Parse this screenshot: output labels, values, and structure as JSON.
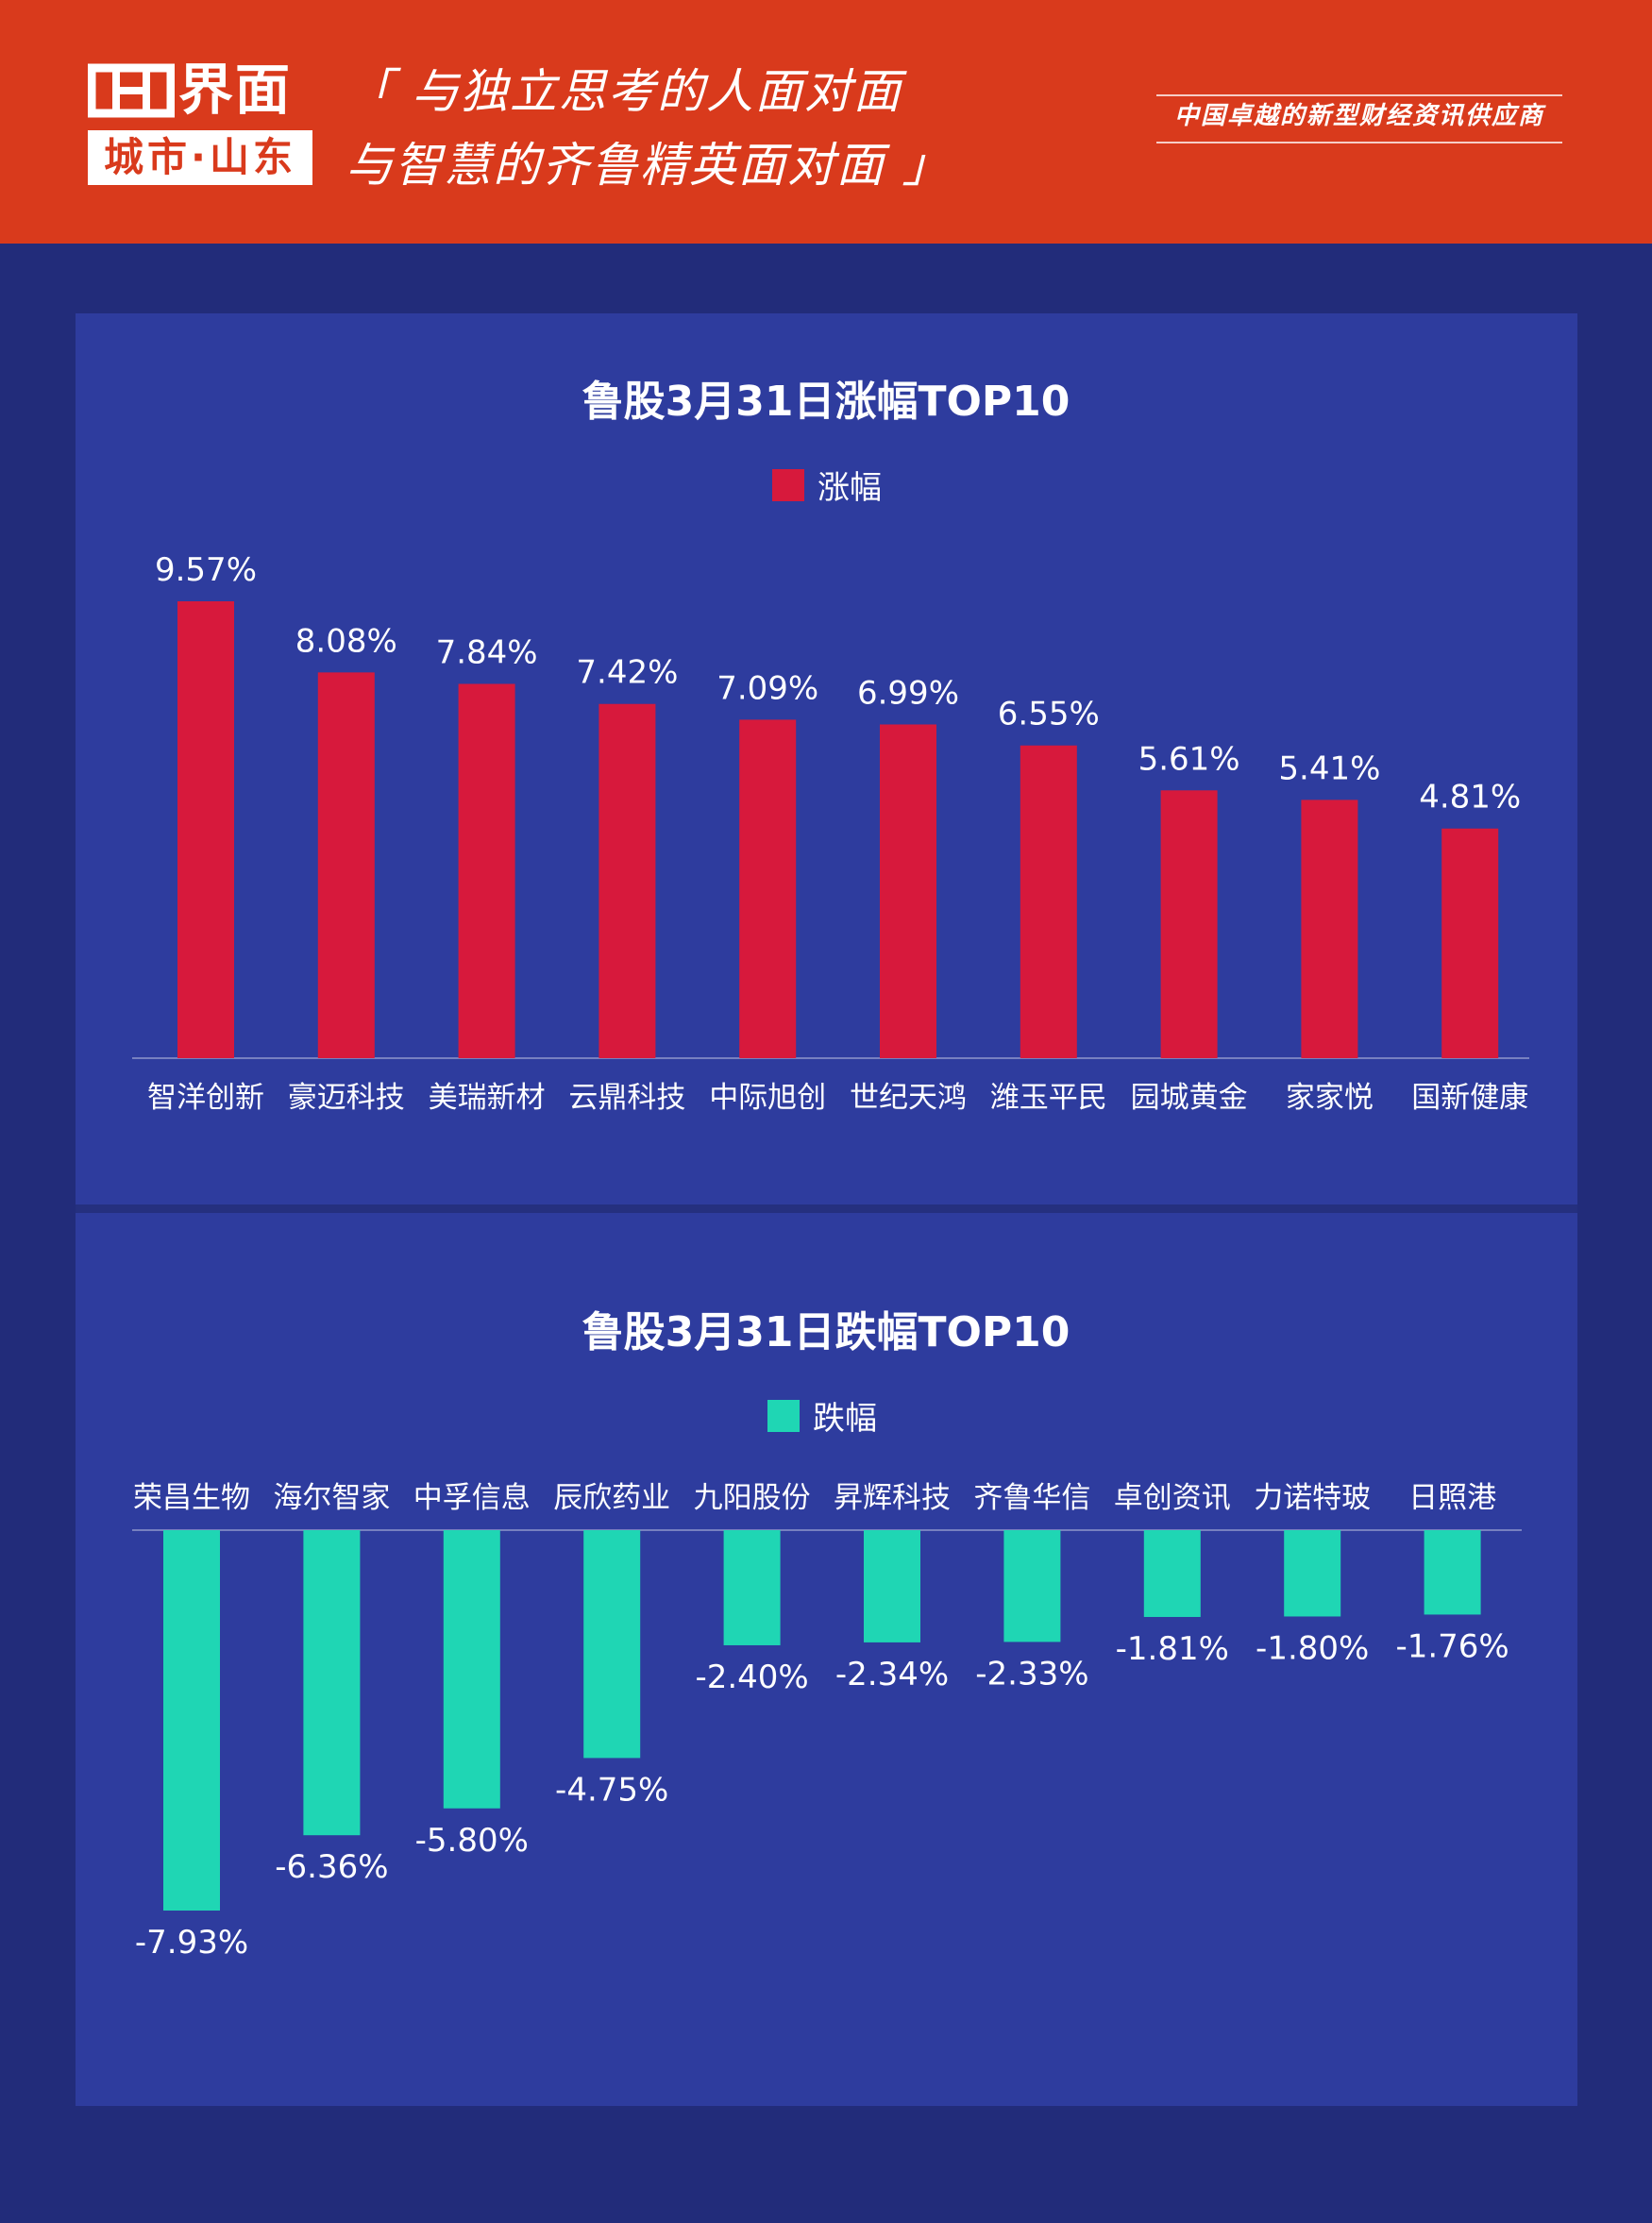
{
  "header": {
    "logo_word": "界面",
    "logo_sub": "城市·山东",
    "slogan_line1": "「 与独立思考的人面对面",
    "slogan_line2": "与智慧的齐鲁精英面对面 」",
    "tagline": "中国卓越的新型财经资讯供应商",
    "background_color": "#d93a1c"
  },
  "chart_data": [
    {
      "type": "bar",
      "title": "鲁股3月31日涨幅TOP10",
      "categories": [
        "智洋创新",
        "豪迈科技",
        "美瑞新材",
        "云鼎科技",
        "中际旭创",
        "世纪天鸿",
        "潍玉平民",
        "园城黄金",
        "家家悦",
        "国新健康"
      ],
      "series": [
        {
          "name": "涨幅",
          "color": "#d7193c",
          "values": [
            9.57,
            8.08,
            7.84,
            7.42,
            7.09,
            6.99,
            6.55,
            5.61,
            5.41,
            4.81
          ],
          "labels": [
            "9.57%",
            "8.08%",
            "7.84%",
            "7.42%",
            "7.09%",
            "6.99%",
            "6.55%",
            "5.61%",
            "5.41%",
            "4.81%"
          ]
        }
      ],
      "ylim": [
        0,
        9.57
      ],
      "legend": "top-center",
      "grid": false
    },
    {
      "type": "bar",
      "title": "鲁股3月31日跌幅TOP10",
      "categories": [
        "荣昌生物",
        "海尔智家",
        "中孚信息",
        "辰欣药业",
        "九阳股份",
        "昇辉科技",
        "齐鲁华信",
        "卓创资讯",
        "力诺特玻",
        "日照港"
      ],
      "series": [
        {
          "name": "跌幅",
          "color": "#1fd6b4",
          "values": [
            -7.93,
            -6.36,
            -5.8,
            -4.75,
            -2.4,
            -2.34,
            -2.33,
            -1.81,
            -1.8,
            -1.76
          ],
          "labels": [
            "-7.93%",
            "-6.36%",
            "-5.80%",
            "-4.75%",
            "-2.40%",
            "-2.34%",
            "-2.33%",
            "-1.81%",
            "-1.80%",
            "-1.76%"
          ]
        }
      ],
      "ylim": [
        -7.93,
        0
      ],
      "legend": "top-center",
      "grid": false
    }
  ]
}
